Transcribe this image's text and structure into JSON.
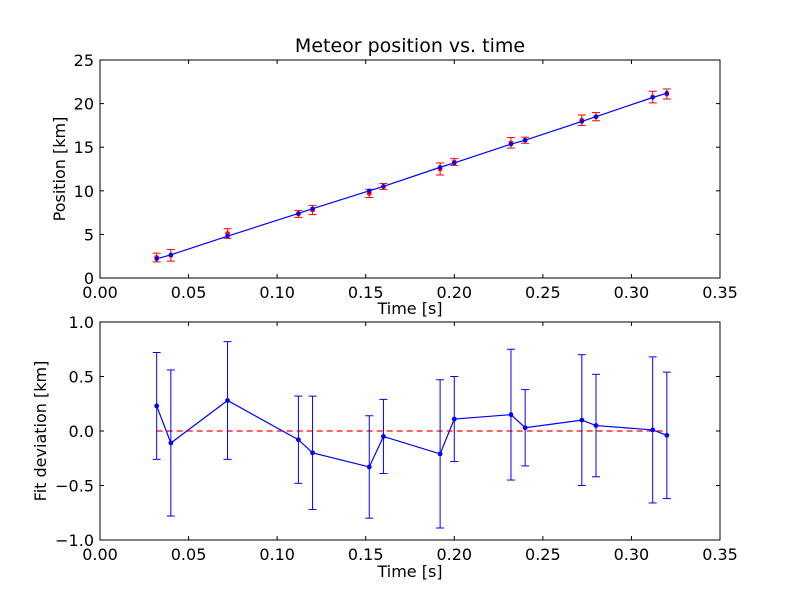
{
  "chart_data": [
    {
      "type": "scatter",
      "title": "Meteor position vs. time",
      "xlabel": "Time [s]",
      "ylabel": "Position [km]",
      "xlim": [
        0,
        0.35
      ],
      "ylim": [
        0,
        25
      ],
      "xticks": [
        "0.00",
        "0.05",
        "0.10",
        "0.15",
        "0.20",
        "0.25",
        "0.30",
        "0.35"
      ],
      "yticks": [
        "0",
        "5",
        "10",
        "15",
        "20",
        "25"
      ],
      "grid": false,
      "series": [
        {
          "kind": "data-with-errorbars",
          "color": "#ff0000",
          "x": [
            0.032,
            0.04,
            0.072,
            0.112,
            0.12,
            0.152,
            0.16,
            0.192,
            0.2,
            0.232,
            0.24,
            0.272,
            0.28,
            0.312,
            0.32
          ],
          "y": [
            2.35,
            2.6,
            5.1,
            7.35,
            7.8,
            9.7,
            10.5,
            12.5,
            13.3,
            15.5,
            15.8,
            18.1,
            18.5,
            20.75,
            21.1
          ],
          "yerr": [
            0.5,
            0.67,
            0.55,
            0.4,
            0.53,
            0.47,
            0.34,
            0.69,
            0.39,
            0.6,
            0.35,
            0.6,
            0.47,
            0.67,
            0.58
          ]
        },
        {
          "kind": "fit",
          "color": "#0000ff",
          "x": [
            0.032,
            0.04,
            0.072,
            0.112,
            0.12,
            0.152,
            0.16,
            0.192,
            0.2,
            0.232,
            0.24,
            0.272,
            0.28,
            0.312,
            0.32
          ],
          "y": [
            2.2,
            2.66,
            4.8,
            7.4,
            7.95,
            10.0,
            10.5,
            12.7,
            13.2,
            15.35,
            15.8,
            17.95,
            18.5,
            20.7,
            21.2
          ]
        }
      ]
    },
    {
      "type": "line",
      "xlabel": "Time [s]",
      "ylabel": "Fit deviation [km]",
      "xlim": [
        0,
        0.35
      ],
      "ylim": [
        -1.0,
        1.0
      ],
      "xticks": [
        "0.00",
        "0.05",
        "0.10",
        "0.15",
        "0.20",
        "0.25",
        "0.30",
        "0.35"
      ],
      "yticks": [
        "−1.0",
        "−0.5",
        "0.0",
        "0.5",
        "1.0"
      ],
      "grid": false,
      "zero_line": {
        "y": 0,
        "x_range": [
          0.032,
          0.32
        ],
        "color": "#ff0000",
        "style": "dashed"
      },
      "series": [
        {
          "kind": "deviation-with-errorbars",
          "color": "#0000ff",
          "x": [
            0.032,
            0.04,
            0.072,
            0.112,
            0.12,
            0.152,
            0.16,
            0.192,
            0.2,
            0.232,
            0.24,
            0.272,
            0.28,
            0.312,
            0.32
          ],
          "y": [
            0.23,
            -0.11,
            0.28,
            -0.08,
            -0.2,
            -0.33,
            -0.05,
            -0.21,
            0.11,
            0.15,
            0.03,
            0.1,
            0.05,
            0.01,
            -0.04
          ],
          "yerr": [
            0.49,
            0.67,
            0.54,
            0.4,
            0.52,
            0.47,
            0.34,
            0.68,
            0.39,
            0.6,
            0.35,
            0.6,
            0.47,
            0.67,
            0.58
          ]
        }
      ]
    }
  ]
}
